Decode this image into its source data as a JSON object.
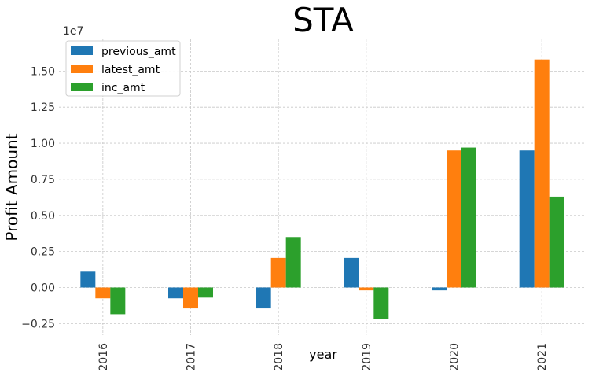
{
  "chart_data": {
    "type": "bar",
    "title": "STA",
    "xlabel": "year",
    "ylabel": "Profit Amount",
    "offset_label": "1e7",
    "categories": [
      "2016",
      "2017",
      "2018",
      "2019",
      "2020",
      "2021"
    ],
    "series": [
      {
        "name": "previous_amt",
        "color": "#1f77b4",
        "values": [
          1100000,
          -750000,
          -1450000,
          2050000,
          -200000,
          9500000
        ]
      },
      {
        "name": "latest_amt",
        "color": "#ff7f0e",
        "values": [
          -750000,
          -1450000,
          2050000,
          -200000,
          9500000,
          15800000
        ]
      },
      {
        "name": "inc_amt",
        "color": "#2ca02c",
        "values": [
          -1850000,
          -700000,
          3500000,
          -2200000,
          9700000,
          6300000
        ]
      }
    ],
    "ylim": [
      -3300000,
      17200000
    ],
    "yticks": [
      -2500000,
      0,
      2500000,
      5000000,
      7500000,
      10000000,
      12500000,
      15000000
    ],
    "ytick_labels": [
      "−0.25",
      "0.00",
      "0.25",
      "0.50",
      "0.75",
      "1.00",
      "1.25",
      "1.50"
    ],
    "grid": true,
    "legend_position": "top-left"
  }
}
